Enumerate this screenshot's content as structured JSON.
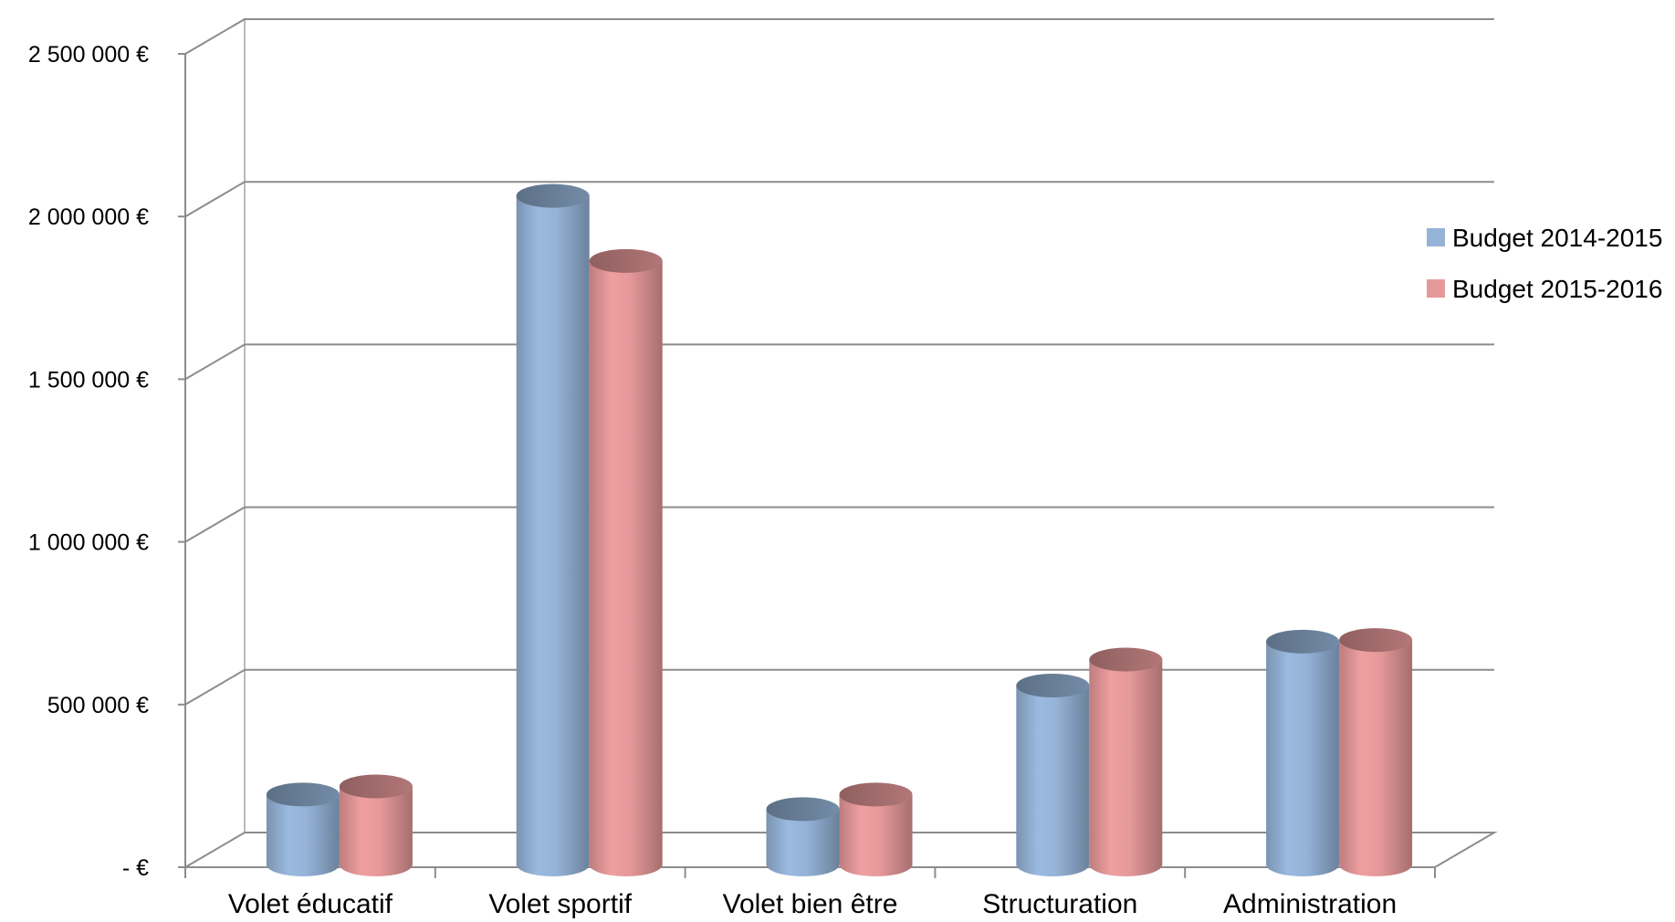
{
  "chart_data": {
    "type": "bar",
    "style": "3d-cylinder",
    "categories": [
      "Volet éducatif",
      "Volet sportif",
      "Volet bien être",
      "Structuration",
      "Administration"
    ],
    "series": [
      {
        "name": "Budget 2014-2015",
        "color": "#95B3D7",
        "values": [
          215000,
          2055000,
          170000,
          550000,
          685000
        ]
      },
      {
        "name": "Budget 2015-2016",
        "color": "#E6999A",
        "values": [
          240000,
          1855000,
          215000,
          630000,
          690000
        ]
      }
    ],
    "ylim": [
      0,
      2500000
    ],
    "yticks": [
      {
        "value": 0,
        "label": "-  €"
      },
      {
        "value": 500000,
        "label": "500 000 €"
      },
      {
        "value": 1000000,
        "label": "1 000 000 €"
      },
      {
        "value": 1500000,
        "label": "1 500 000 €"
      },
      {
        "value": 2000000,
        "label": "2 000 000 €"
      },
      {
        "value": 2500000,
        "label": "2 500 000 €"
      }
    ],
    "grid": true,
    "legend_position": "right",
    "title": "",
    "xlabel": "",
    "ylabel": ""
  }
}
